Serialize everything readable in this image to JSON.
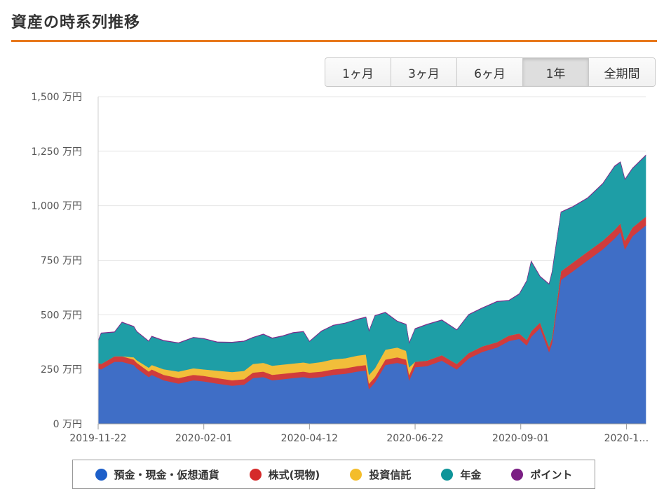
{
  "header": {
    "title": "資産の時系列推移"
  },
  "range_buttons": [
    {
      "label": "1ヶ月",
      "active": false
    },
    {
      "label": "3ヶ月",
      "active": false
    },
    {
      "label": "6ヶ月",
      "active": false
    },
    {
      "label": "1年",
      "active": true
    },
    {
      "label": "全期間",
      "active": false
    }
  ],
  "chart_data": {
    "type": "area",
    "stacked": true,
    "y_unit": "万円",
    "ylim": [
      0,
      1500
    ],
    "yticks": [
      0,
      250,
      500,
      750,
      1000,
      1250,
      1500
    ],
    "ytick_labels": [
      "0 万円",
      "250 万円",
      "500 万円",
      "750 万円",
      "1,000 万円",
      "1,250 万円",
      "1,500 万円"
    ],
    "xlim": [
      "2019-11-22",
      "2020-11-24"
    ],
    "xticks": [
      "2019-11-22",
      "2020-02-01",
      "2020-04-12",
      "2020-06-22",
      "2020-09-01",
      "2020-11-11"
    ],
    "xtick_labels": [
      "2019-11-22",
      "2020-02-01",
      "2020-04-12",
      "2020-06-22",
      "2020-09-01",
      "2020-1…"
    ],
    "grid": true,
    "legend_position": "bottom",
    "x": [
      "2019-11-22",
      "2019-11-24",
      "2019-12-03",
      "2019-12-08",
      "2019-12-16",
      "2019-12-18",
      "2019-12-26",
      "2019-12-28",
      "2020-01-05",
      "2020-01-15",
      "2020-01-25",
      "2020-02-01",
      "2020-02-10",
      "2020-02-20",
      "2020-02-28",
      "2020-03-05",
      "2020-03-12",
      "2020-03-18",
      "2020-03-25",
      "2020-04-01",
      "2020-04-08",
      "2020-04-12",
      "2020-04-20",
      "2020-04-28",
      "2020-05-06",
      "2020-05-14",
      "2020-05-20",
      "2020-05-22",
      "2020-05-26",
      "2020-06-02",
      "2020-06-10",
      "2020-06-16",
      "2020-06-18",
      "2020-06-22",
      "2020-06-30",
      "2020-07-10",
      "2020-07-20",
      "2020-07-28",
      "2020-08-06",
      "2020-08-16",
      "2020-08-24",
      "2020-08-31",
      "2020-09-05",
      "2020-09-08",
      "2020-09-14",
      "2020-09-20",
      "2020-09-22",
      "2020-09-28",
      "2020-10-06",
      "2020-10-16",
      "2020-10-26",
      "2020-11-03",
      "2020-11-07",
      "2020-11-10",
      "2020-11-15",
      "2020-11-24"
    ],
    "series": [
      {
        "name": "預金・現金・仮想通貨",
        "color": "#3f6ec6",
        "values": [
          255,
          250,
          285,
          285,
          270,
          255,
          215,
          225,
          200,
          185,
          200,
          195,
          185,
          175,
          180,
          210,
          215,
          200,
          205,
          210,
          215,
          210,
          215,
          225,
          230,
          240,
          245,
          160,
          190,
          270,
          280,
          270,
          200,
          260,
          265,
          290,
          250,
          300,
          330,
          350,
          380,
          390,
          360,
          400,
          440,
          330,
          370,
          660,
          700,
          750,
          800,
          850,
          880,
          800,
          860,
          910
        ]
      },
      {
        "name": "株式(現物)",
        "color": "#d03c3c",
        "values": [
          25,
          25,
          25,
          25,
          25,
          25,
          25,
          25,
          25,
          25,
          25,
          25,
          25,
          25,
          25,
          25,
          25,
          25,
          25,
          25,
          25,
          25,
          25,
          25,
          25,
          25,
          25,
          25,
          25,
          25,
          25,
          25,
          25,
          25,
          25,
          25,
          25,
          25,
          25,
          25,
          25,
          25,
          25,
          25,
          25,
          25,
          25,
          40,
          40,
          40,
          40,
          40,
          40,
          40,
          40,
          40
        ]
      },
      {
        "name": "投資信託",
        "color": "#f2be3a",
        "values": [
          0,
          0,
          0,
          0,
          10,
          12,
          18,
          20,
          26,
          30,
          30,
          30,
          34,
          38,
          38,
          40,
          40,
          42,
          42,
          42,
          42,
          42,
          44,
          46,
          46,
          48,
          48,
          40,
          40,
          45,
          45,
          40,
          35,
          0,
          0,
          0,
          0,
          0,
          0,
          0,
          0,
          0,
          0,
          0,
          0,
          0,
          0,
          0,
          0,
          0,
          0,
          0,
          0,
          0,
          0,
          0
        ]
      },
      {
        "name": "年金",
        "color": "#1e9ea6",
        "values": [
          100,
          140,
          110,
          155,
          140,
          130,
          120,
          130,
          130,
          130,
          140,
          140,
          130,
          135,
          135,
          120,
          130,
          125,
          130,
          140,
          140,
          100,
          140,
          155,
          160,
          165,
          170,
          200,
          240,
          170,
          120,
          120,
          110,
          150,
          165,
          160,
          155,
          175,
          175,
          185,
          160,
          180,
          270,
          320,
          210,
          285,
          300,
          270,
          255,
          245,
          260,
          290,
          280,
          280,
          270,
          280
        ]
      },
      {
        "name": "ポイント",
        "color": "#7d2a8a",
        "values": [
          2,
          2,
          2,
          2,
          2,
          2,
          2,
          2,
          2,
          2,
          2,
          2,
          2,
          2,
          2,
          2,
          2,
          2,
          2,
          2,
          2,
          2,
          2,
          2,
          2,
          2,
          2,
          2,
          2,
          2,
          2,
          2,
          2,
          2,
          2,
          2,
          2,
          2,
          2,
          2,
          2,
          2,
          2,
          2,
          2,
          2,
          2,
          2,
          2,
          2,
          2,
          2,
          2,
          2,
          2,
          2
        ]
      }
    ]
  },
  "legend": [
    {
      "label": "預金・現金・仮想通貨",
      "color": "#1d5fc9",
      "icon": "circle-icon"
    },
    {
      "label": "株式(現物)",
      "color": "#d52b2b",
      "icon": "circle-icon"
    },
    {
      "label": "投資信託",
      "color": "#f4bd2a",
      "icon": "circle-icon"
    },
    {
      "label": "年金",
      "color": "#0e9499",
      "icon": "circle-icon"
    },
    {
      "label": "ポイント",
      "color": "#7b1f84",
      "icon": "circle-icon"
    }
  ]
}
